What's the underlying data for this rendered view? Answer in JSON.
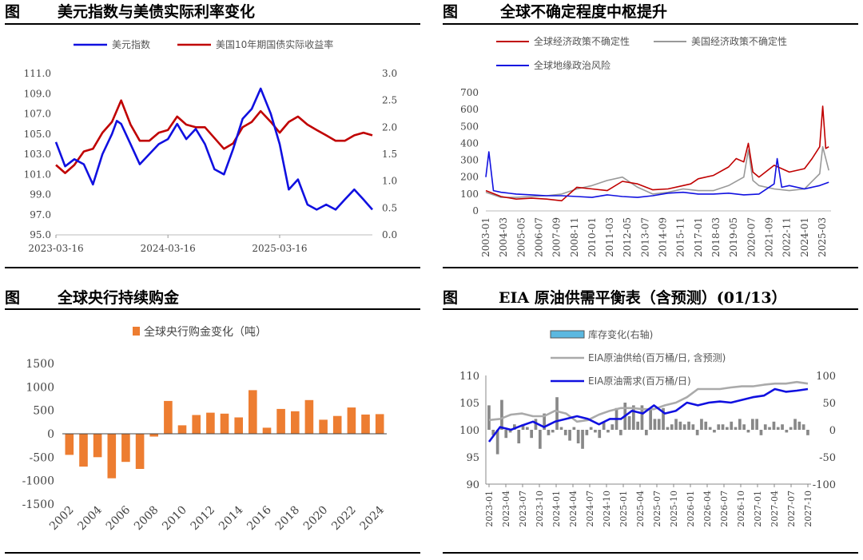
{
  "panels": {
    "tl": {
      "fig": "图",
      "title": "美元指数与美债实际利率变化"
    },
    "tr": {
      "fig": "图",
      "title": "全球不确定程度中枢提升"
    },
    "bl": {
      "fig": "图",
      "title": "全球央行持续购金"
    },
    "br": {
      "fig": "图",
      "title": "EIA 原油供需平衡表（含预测）(01/13）"
    }
  },
  "colors": {
    "blue": "#1010e0",
    "red": "#c00000",
    "gray": "#999999",
    "orange": "#ed7d31",
    "cyan": "#5bb8e0"
  },
  "chart_data": [
    {
      "id": "dxy",
      "type": "line",
      "series": [
        {
          "name": "美元指数",
          "axis": "left",
          "x": [
            "2023-03-16",
            "2023-04-15",
            "2023-05-15",
            "2023-06-15",
            "2023-07-15",
            "2023-08-15",
            "2023-09-15",
            "2023-10-01",
            "2023-10-15",
            "2023-11-15",
            "2023-12-15",
            "2024-01-15",
            "2024-02-15",
            "2024-03-16",
            "2024-04-15",
            "2024-05-15",
            "2024-06-15",
            "2024-07-15",
            "2024-08-15",
            "2024-09-15",
            "2024-10-15",
            "2024-11-15",
            "2024-12-15",
            "2025-01-13",
            "2025-02-15",
            "2025-03-16",
            "2025-04-15",
            "2025-05-15",
            "2025-06-15",
            "2025-07-15",
            "2025-08-15",
            "2025-09-15",
            "2025-10-15",
            "2025-11-15",
            "2025-12-15",
            "2026-01-13"
          ],
          "values": [
            104.2,
            101.8,
            102.5,
            102.0,
            100.0,
            103.0,
            105.0,
            106.3,
            106.0,
            104.0,
            102.0,
            103.0,
            104.0,
            104.5,
            106.0,
            104.5,
            105.5,
            104.0,
            101.5,
            101.0,
            103.5,
            106.5,
            107.5,
            109.5,
            107.0,
            104.0,
            99.5,
            100.5,
            98.0,
            97.5,
            98.0,
            97.5,
            98.5,
            99.5,
            98.5,
            97.5
          ]
        },
        {
          "name": "美国10年期国债实际收益率",
          "axis": "right",
          "x": [
            "2023-03-16",
            "2023-04-15",
            "2023-05-15",
            "2023-06-15",
            "2023-07-15",
            "2023-08-15",
            "2023-09-15",
            "2023-10-15",
            "2023-11-15",
            "2023-12-15",
            "2024-01-15",
            "2024-02-15",
            "2024-03-16",
            "2024-04-15",
            "2024-05-15",
            "2024-06-15",
            "2024-07-15",
            "2024-08-15",
            "2024-09-15",
            "2024-10-15",
            "2024-11-15",
            "2024-12-15",
            "2025-01-13",
            "2025-02-15",
            "2025-03-16",
            "2025-04-15",
            "2025-05-15",
            "2025-06-15",
            "2025-07-15",
            "2025-08-15",
            "2025-09-15",
            "2025-10-15",
            "2025-11-15",
            "2025-12-15",
            "2026-01-13"
          ],
          "values": [
            1.3,
            1.15,
            1.3,
            1.55,
            1.6,
            1.9,
            2.1,
            2.5,
            2.05,
            1.75,
            1.75,
            1.9,
            1.95,
            2.2,
            2.05,
            2.0,
            2.0,
            1.8,
            1.6,
            1.7,
            2.0,
            2.1,
            2.3,
            2.1,
            1.9,
            2.1,
            2.2,
            2.05,
            1.95,
            1.85,
            1.75,
            1.75,
            1.85,
            1.9,
            1.85
          ]
        }
      ],
      "y_left": {
        "min": 95.0,
        "max": 111.0,
        "ticks": [
          "95.0",
          "97.0",
          "99.0",
          "101.0",
          "103.0",
          "105.0",
          "107.0",
          "109.0",
          "111.0"
        ]
      },
      "y_right": {
        "min": 0.0,
        "max": 3.0,
        "ticks": [
          "0.0",
          "0.5",
          "1.0",
          "1.5",
          "2.0",
          "2.5",
          "3.0"
        ]
      },
      "x_ticks": [
        "2023-03-16",
        "2024-03-16",
        "2025-03-16"
      ]
    },
    {
      "id": "uncertainty",
      "type": "line",
      "series": [
        {
          "name": "全球经济政策不确定性",
          "x": [
            2003.0,
            2004.0,
            2005.0,
            2006.0,
            2007.0,
            2008.0,
            2009.0,
            2010.0,
            2011.0,
            2012.0,
            2013.0,
            2014.0,
            2015.0,
            2016.0,
            2016.5,
            2017.0,
            2018.0,
            2019.0,
            2019.5,
            2020.0,
            2020.3,
            2020.6,
            2021.0,
            2022.0,
            2023.0,
            2024.0,
            2024.5,
            2025.0,
            2025.2,
            2025.4,
            2025.6
          ],
          "values": [
            120,
            85,
            70,
            75,
            70,
            60,
            140,
            130,
            120,
            175,
            160,
            125,
            130,
            150,
            160,
            190,
            210,
            260,
            310,
            290,
            400,
            230,
            200,
            270,
            230,
            250,
            310,
            380,
            620,
            370,
            380
          ]
        },
        {
          "name": "美国经济政策不确定性",
          "x": [
            2003.0,
            2004.0,
            2005.0,
            2006.0,
            2007.0,
            2008.0,
            2009.0,
            2010.0,
            2011.0,
            2012.0,
            2013.0,
            2014.0,
            2015.0,
            2016.0,
            2017.0,
            2018.0,
            2019.0,
            2020.0,
            2020.3,
            2020.6,
            2021.0,
            2022.0,
            2023.0,
            2024.0,
            2025.0,
            2025.2,
            2025.6
          ],
          "values": [
            110,
            80,
            80,
            85,
            90,
            100,
            130,
            150,
            180,
            200,
            140,
            100,
            110,
            130,
            120,
            120,
            150,
            200,
            360,
            180,
            150,
            130,
            120,
            130,
            220,
            380,
            240
          ]
        },
        {
          "name": "全球地缘政治风险",
          "x": [
            2003.0,
            2003.2,
            2003.5,
            2004.0,
            2005.0,
            2006.0,
            2007.0,
            2008.0,
            2009.0,
            2010.0,
            2011.0,
            2012.0,
            2013.0,
            2014.0,
            2015.0,
            2016.0,
            2017.0,
            2018.0,
            2019.0,
            2020.0,
            2021.0,
            2022.0,
            2022.2,
            2022.5,
            2023.0,
            2024.0,
            2025.0,
            2025.6
          ],
          "values": [
            200,
            350,
            120,
            110,
            100,
            95,
            90,
            90,
            85,
            80,
            95,
            85,
            80,
            90,
            105,
            110,
            100,
            100,
            105,
            95,
            100,
            160,
            310,
            140,
            150,
            130,
            150,
            170
          ]
        }
      ],
      "y": {
        "min": 0,
        "max": 700,
        "ticks": [
          "0",
          "100",
          "200",
          "300",
          "400",
          "500",
          "600",
          "700"
        ]
      },
      "x_ticks": [
        "2003-01",
        "2004-03",
        "2005-05",
        "2006-07",
        "2007-09",
        "2008-11",
        "2010-01",
        "2011-03",
        "2012-05",
        "2013-07",
        "2014-09",
        "2015-11",
        "2017-01",
        "2018-03",
        "2019-05",
        "2020-07",
        "2021-09",
        "2022-11",
        "2024-01",
        "2025-03"
      ]
    },
    {
      "id": "gold",
      "type": "bar",
      "series": [
        {
          "name": "全球央行购金变化（吨）",
          "categories": [
            "2002",
            "2003",
            "2004",
            "2005",
            "2006",
            "2007",
            "2008",
            "2009",
            "2010",
            "2011",
            "2012",
            "2013",
            "2014",
            "2015",
            "2016",
            "2017",
            "2018",
            "2019",
            "2020",
            "2021",
            "2022",
            "2023",
            "2024"
          ],
          "values": [
            -450,
            -700,
            -500,
            -950,
            -600,
            -750,
            -60,
            700,
            180,
            400,
            450,
            430,
            350,
            930,
            130,
            530,
            480,
            720,
            300,
            380,
            560,
            410,
            420
          ]
        }
      ],
      "y": {
        "min": -1500,
        "max": 1500,
        "ticks": [
          "-1500",
          "-1000",
          "-500",
          "0",
          "500",
          "1000",
          "1500"
        ]
      },
      "x_ticks": [
        "2002",
        "2004",
        "2006",
        "2008",
        "2010",
        "2012",
        "2014",
        "2016",
        "2018",
        "2020",
        "2022",
        "2024"
      ]
    },
    {
      "id": "eia",
      "type": "bar+line",
      "series": [
        {
          "name": "库存变化(右轴)",
          "type": "bar",
          "axis": "right",
          "values": [
            45,
            -10,
            -45,
            55,
            -15,
            -5,
            10,
            -25,
            10,
            5,
            -15,
            20,
            -35,
            30,
            -10,
            -5,
            60,
            5,
            -10,
            -20,
            5,
            -25,
            -35,
            -10,
            5,
            -5,
            -15,
            15,
            -5,
            10,
            40,
            -10,
            50,
            25,
            45,
            15,
            45,
            -10,
            40,
            20,
            20,
            40,
            5,
            10,
            20,
            15,
            10,
            15,
            10,
            -10,
            20,
            15,
            5,
            -5,
            10,
            10,
            5,
            15,
            5,
            20,
            10,
            -5,
            20,
            20,
            -10,
            10,
            5,
            15,
            5,
            10,
            -5,
            5,
            20,
            15,
            10,
            -10
          ]
        },
        {
          "name": "EIA原油供给(百万桶/日, 含预测)",
          "type": "line",
          "axis": "left",
          "x": [
            0,
            2,
            4,
            6,
            8,
            10,
            12,
            14,
            16,
            18,
            20,
            22,
            24,
            26,
            28,
            30,
            32,
            34,
            36,
            38,
            40,
            42,
            44,
            46,
            48,
            50,
            52,
            54,
            56,
            58
          ],
          "values": [
            101.8,
            102.0,
            102.8,
            103.0,
            102.5,
            102.5,
            103.5,
            103.0,
            101.5,
            101.8,
            102.8,
            103.5,
            104.0,
            104.0,
            103.8,
            103.8,
            104.5,
            105.0,
            106.0,
            107.5,
            107.5,
            107.5,
            107.8,
            108.0,
            108.0,
            108.3,
            108.5,
            108.5,
            108.8,
            108.5
          ]
        },
        {
          "name": "EIA原油需求(百万桶/日)",
          "type": "line",
          "axis": "left",
          "x": [
            0,
            2,
            4,
            6,
            8,
            10,
            12,
            14,
            16,
            18,
            20,
            22,
            24,
            26,
            28,
            30,
            32,
            34,
            36,
            38,
            40,
            42,
            44,
            46,
            48,
            50,
            52,
            54,
            56,
            58
          ],
          "values": [
            97.8,
            100.5,
            100.0,
            100.8,
            101.5,
            100.5,
            101.5,
            102.0,
            102.5,
            102.0,
            101.0,
            102.0,
            102.0,
            103.5,
            103.0,
            104.5,
            103.0,
            103.5,
            105.0,
            104.5,
            105.0,
            105.2,
            105.0,
            105.5,
            106.0,
            106.3,
            107.5,
            107.0,
            107.2,
            107.5
          ]
        }
      ],
      "y_left": {
        "min": 90,
        "max": 110,
        "ticks": [
          "90",
          "95",
          "100",
          "105",
          "110"
        ]
      },
      "y_right": {
        "min": -100,
        "max": 100,
        "ticks": [
          "-100",
          "-50",
          "0",
          "50",
          "100"
        ]
      },
      "x_ticks": [
        "2023-01",
        "2023-04",
        "2023-07",
        "2023-10",
        "2024-01",
        "2024-04",
        "2024-07",
        "2024-10",
        "2025-01",
        "2025-04",
        "2025-07",
        "2025-10",
        "2026-01",
        "2026-04",
        "2026-07",
        "2026-10",
        "2027-01",
        "2027-04",
        "2027-07",
        "2027-10"
      ]
    }
  ]
}
